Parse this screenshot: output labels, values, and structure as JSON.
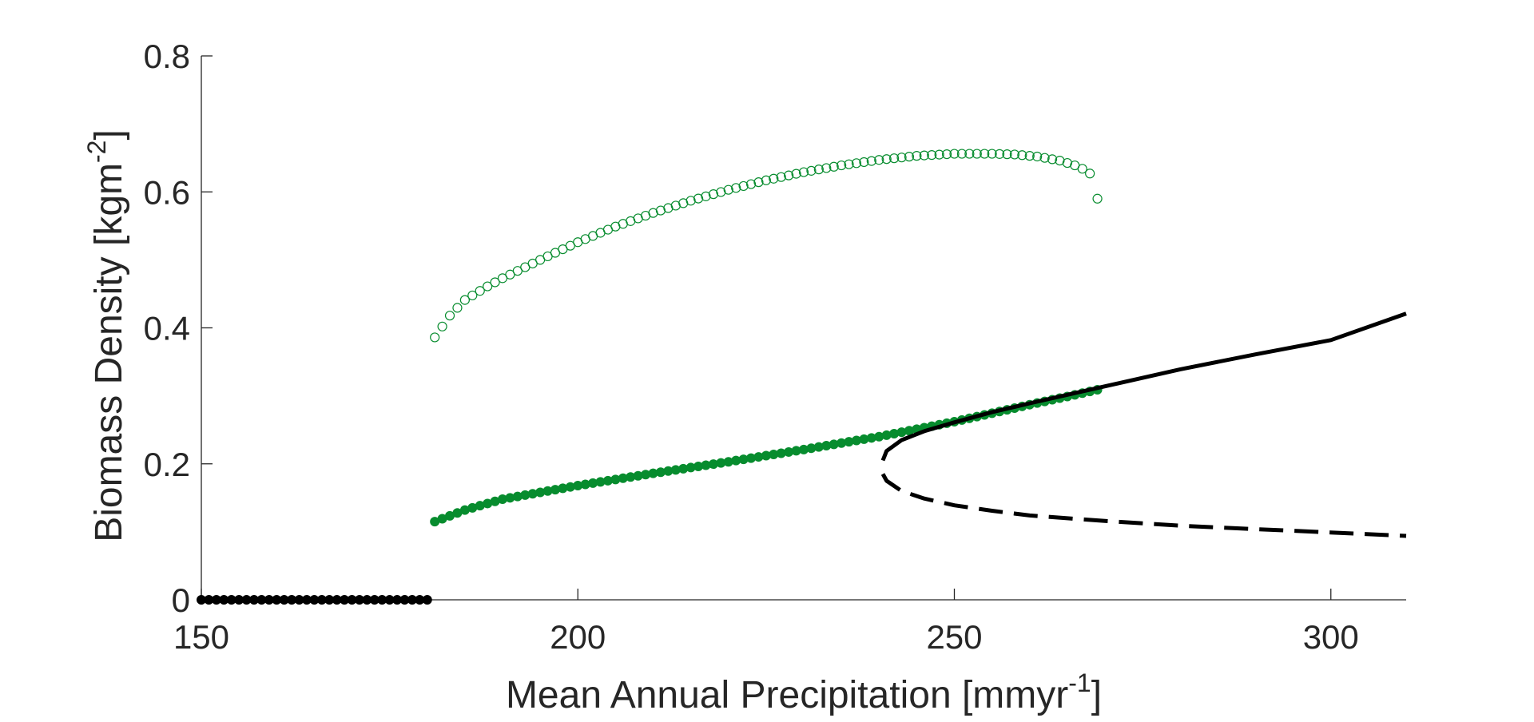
{
  "chart_data": {
    "type": "scatter",
    "title": "",
    "xlabel": "Mean Annual Precipitation [mmyr",
    "xlabel_sup": "-1",
    "xlabel_tail": "]",
    "ylabel": "Biomass Density [kgm",
    "ylabel_sup": "-2",
    "ylabel_tail": "]",
    "xlim": [
      150,
      310
    ],
    "ylim": [
      0,
      0.8
    ],
    "xticks": [
      150,
      200,
      250,
      300
    ],
    "xtick_labels": [
      "150",
      "200",
      "250",
      "300"
    ],
    "yticks": [
      0,
      0.2,
      0.4,
      0.6,
      0.8
    ],
    "ytick_labels": [
      "0",
      "0.2",
      "0.4",
      "0.6",
      "0.8"
    ],
    "grid": false,
    "box": "left-bottom axes only",
    "colors": {
      "green": "#078c2e",
      "black": "#000000",
      "axis": "#262626"
    },
    "series": [
      {
        "marker": "filled-circle",
        "color": "#000000",
        "x_range": [
          150,
          180
        ],
        "x_step": 1,
        "y_constant": 0
      },
      {
        "marker": "filled-circle",
        "color": "#078c2e",
        "x_range": [
          181,
          269
        ],
        "x_step": 1,
        "curve": {
          "x": [
            181,
            185,
            190,
            200,
            210,
            220,
            230,
            240,
            250,
            260,
            265,
            269
          ],
          "y": [
            0.115,
            0.132,
            0.148,
            0.168,
            0.186,
            0.203,
            0.221,
            0.24,
            0.262,
            0.287,
            0.299,
            0.309
          ]
        }
      },
      {
        "marker": "open-circle",
        "color": "#078c2e",
        "x_range": [
          181,
          268
        ],
        "x_step": 1,
        "curve": {
          "x": [
            181,
            183,
            185,
            188,
            190,
            195,
            200,
            205,
            210,
            215,
            220,
            225,
            230,
            235,
            240,
            245,
            250,
            255,
            258,
            261,
            264,
            266,
            267,
            268
          ],
          "y": [
            0.386,
            0.418,
            0.441,
            0.461,
            0.473,
            0.5,
            0.526,
            0.549,
            0.569,
            0.587,
            0.603,
            0.617,
            0.629,
            0.639,
            0.647,
            0.653,
            0.656,
            0.656,
            0.655,
            0.652,
            0.646,
            0.639,
            0.634,
            0.627
          ]
        },
        "extra_point": {
          "x": 269,
          "y": 0.59
        }
      },
      {
        "line": "solid",
        "color": "#000000",
        "x": [
          240.5,
          241,
          243,
          246,
          250,
          255,
          260,
          270,
          280,
          290,
          300,
          310
        ],
        "y": [
          0.205,
          0.219,
          0.235,
          0.248,
          0.261,
          0.276,
          0.289,
          0.314,
          0.339,
          0.361,
          0.382,
          0.421
        ]
      },
      {
        "line": "dashed",
        "color": "#000000",
        "x": [
          240.5,
          241,
          243,
          246,
          250,
          255,
          260,
          270,
          280,
          290,
          300,
          310
        ],
        "y": [
          0.185,
          0.175,
          0.16,
          0.149,
          0.139,
          0.131,
          0.124,
          0.116,
          0.109,
          0.104,
          0.099,
          0.094
        ]
      }
    ]
  }
}
